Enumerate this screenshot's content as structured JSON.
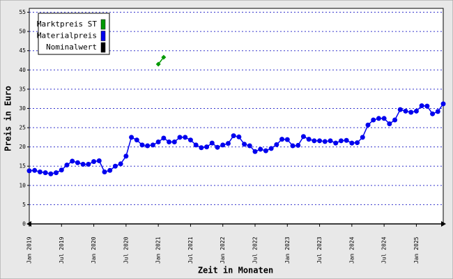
{
  "chart_data": {
    "type": "line",
    "x_label": "Zeit in Monaten",
    "y_label": "Preis in Euro",
    "ylim": [
      0,
      56
    ],
    "yticks": [
      0,
      5,
      10,
      15,
      20,
      25,
      30,
      35,
      40,
      45,
      50,
      55
    ],
    "grid": true,
    "legend": "top-left",
    "categories": [
      "Jan 2019",
      null,
      null,
      null,
      null,
      null,
      "Jul 2019",
      null,
      null,
      null,
      null,
      null,
      "Jan 2020",
      null,
      null,
      null,
      null,
      null,
      "Jul 2020",
      null,
      null,
      null,
      null,
      null,
      "Jan 2021",
      null,
      null,
      null,
      null,
      null,
      "Jul 2021",
      null,
      null,
      null,
      null,
      null,
      "Jan 2022",
      null,
      null,
      null,
      null,
      null,
      "Jul 2022",
      null,
      null,
      null,
      null,
      null,
      "Jan 2023",
      null,
      null,
      null,
      null,
      null,
      "Jul 2023",
      null,
      null,
      null,
      null,
      null,
      "Jan 2024",
      null,
      null,
      null,
      null,
      null,
      "Jul 2024",
      null,
      null,
      null,
      null,
      null,
      "Jan 2025",
      null,
      null,
      null,
      null,
      null
    ],
    "series": [
      {
        "name": "Marktpreis ST",
        "color": "#009900",
        "values": [
          null,
          null,
          null,
          null,
          null,
          null,
          null,
          null,
          null,
          null,
          null,
          null,
          null,
          null,
          null,
          null,
          null,
          null,
          null,
          null,
          null,
          null,
          null,
          null,
          41.5,
          43.3,
          null,
          null,
          null,
          null,
          null,
          null,
          null,
          null,
          null,
          null,
          null,
          null,
          null,
          null,
          null,
          null,
          null,
          null,
          null,
          null,
          null,
          null,
          null,
          null,
          null,
          null,
          null,
          null,
          null,
          null,
          null,
          null,
          null,
          null,
          null,
          null,
          null,
          null,
          null,
          null,
          null,
          null,
          null,
          null,
          null,
          null,
          null,
          null,
          null,
          null,
          null,
          null
        ]
      },
      {
        "name": "Materialpreis",
        "color": "#0000ee",
        "values": [
          13.8,
          13.9,
          13.5,
          13.3,
          13.0,
          13.3,
          14.0,
          15.3,
          16.3,
          15.9,
          15.5,
          15.5,
          16.2,
          16.4,
          13.5,
          13.9,
          15.0,
          15.6,
          17.6,
          22.5,
          21.8,
          20.5,
          20.3,
          20.5,
          21.3,
          22.3,
          21.3,
          21.3,
          22.5,
          22.5,
          21.8,
          20.5,
          19.8,
          20.0,
          21.0,
          19.9,
          20.5,
          20.9,
          22.9,
          22.6,
          20.7,
          20.3,
          18.8,
          19.4,
          19.0,
          19.6,
          20.6,
          22.0,
          21.9,
          20.3,
          20.4,
          22.7,
          22.0,
          21.6,
          21.6,
          21.4,
          21.6,
          21.0,
          21.6,
          21.7,
          21.0,
          21.1,
          22.5,
          25.7,
          27.0,
          27.4,
          27.4,
          26.0,
          27.0,
          29.7,
          29.3,
          29.0,
          29.3,
          30.7,
          30.6,
          28.6,
          29.2,
          31.2
        ]
      },
      {
        "name": "Nominalwert",
        "color": "#000000",
        "values": [
          null,
          null,
          null,
          null,
          null,
          null,
          null,
          null,
          null,
          null,
          null,
          null,
          null,
          null,
          null,
          null,
          null,
          null,
          null,
          null,
          null,
          null,
          null,
          null,
          null,
          null,
          null,
          null,
          null,
          null,
          null,
          null,
          null,
          null,
          null,
          null,
          null,
          null,
          null,
          null,
          null,
          null,
          null,
          null,
          null,
          null,
          null,
          null,
          null,
          null,
          null,
          null,
          null,
          null,
          null,
          null,
          null,
          null,
          null,
          null,
          null,
          null,
          null,
          null,
          null,
          null,
          null,
          null,
          null,
          null,
          null,
          null,
          null,
          null,
          null,
          null,
          null,
          null
        ]
      }
    ]
  }
}
